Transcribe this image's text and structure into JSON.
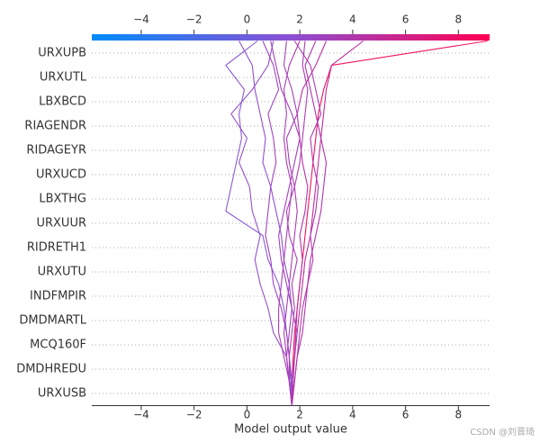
{
  "chart_data": {
    "type": "decision",
    "xlabel": "Model output value",
    "features": [
      "URXUPB",
      "URXUTL",
      "LBXBCD",
      "RIAGENDR",
      "RIDAGEYR",
      "URXUCD",
      "LBXTHG",
      "URXUUR",
      "RIDRETH1",
      "URXUTU",
      "INDFMPIR",
      "DMDMARTL",
      "MCQ160F",
      "DMDHREDU",
      "URXUSB"
    ],
    "xlim": [
      -5.87,
      9.18
    ],
    "xticks": [
      {
        "value": -4,
        "label": "−4"
      },
      {
        "value": -2,
        "label": "−2"
      },
      0,
      2,
      4,
      6,
      8
    ],
    "colormap": [
      "#008bfb",
      "#8c4fd3",
      "#ff0052"
    ],
    "grid": true,
    "series": [
      {
        "color": "#f0115e",
        "values": [
          1.7,
          1.7,
          1.75,
          1.8,
          1.9,
          2.0,
          2.1,
          2.2,
          2.3,
          2.4,
          2.5,
          2.6,
          2.7,
          2.9,
          3.2,
          9.1
        ]
      },
      {
        "color": "#8a5bd6",
        "values": [
          1.7,
          1.65,
          1.6,
          1.5,
          1.4,
          1.2,
          0.8,
          0.6,
          -0.8,
          -0.6,
          -0.4,
          -0.2,
          -0.3,
          -0.1,
          -0.8,
          0.4
        ]
      },
      {
        "color": "#9550cf",
        "values": [
          1.7,
          1.6,
          1.5,
          1.0,
          0.8,
          0.5,
          0.3,
          0.5,
          0.2,
          0.1,
          -0.3,
          0.0,
          -0.6,
          0.2,
          0.8,
          1.0
        ]
      },
      {
        "color": "#c22a9a",
        "values": [
          1.7,
          1.7,
          1.8,
          1.9,
          2.0,
          2.1,
          2.2,
          2.4,
          2.5,
          2.6,
          2.7,
          2.8,
          2.9,
          3.0,
          3.2,
          4.4
        ]
      },
      {
        "color": "#ad3bb3",
        "values": [
          1.7,
          1.6,
          1.5,
          1.4,
          1.5,
          1.6,
          1.7,
          1.8,
          1.9,
          1.8,
          2.0,
          2.1,
          2.2,
          2.3,
          2.1,
          2.2
        ]
      },
      {
        "color": "#a044c0",
        "values": [
          1.7,
          1.6,
          1.6,
          1.5,
          1.3,
          1.0,
          0.9,
          0.7,
          0.8,
          0.9,
          1.1,
          1.0,
          0.8,
          1.2,
          1.0,
          0.6
        ]
      },
      {
        "color": "#ae3ab2",
        "values": [
          1.7,
          1.8,
          1.9,
          2.0,
          2.1,
          2.3,
          2.5,
          2.4,
          2.6,
          2.7,
          2.5,
          2.4,
          2.8,
          2.6,
          2.4,
          1.8
        ]
      },
      {
        "color": "#a73fb8",
        "values": [
          1.7,
          1.7,
          1.6,
          1.7,
          1.8,
          1.7,
          1.9,
          1.6,
          1.5,
          1.8,
          1.6,
          1.5,
          1.9,
          1.7,
          1.4,
          1.5
        ]
      },
      {
        "color": "#9250d0",
        "values": [
          1.7,
          1.7,
          1.8,
          1.9,
          1.7,
          1.6,
          1.4,
          1.3,
          1.1,
          0.9,
          0.6,
          0.7,
          0.5,
          0.3,
          0.2,
          -0.3
        ]
      },
      {
        "color": "#b333ac",
        "values": [
          1.7,
          1.8,
          1.9,
          2.1,
          2.2,
          2.3,
          2.4,
          2.6,
          2.8,
          2.9,
          3.0,
          2.8,
          2.6,
          2.4,
          2.2,
          2.6
        ]
      },
      {
        "color": "#a441bc",
        "values": [
          1.7,
          1.6,
          1.5,
          1.6,
          1.7,
          1.5,
          1.3,
          1.2,
          1.4,
          1.6,
          1.8,
          2.0,
          1.7,
          1.3,
          1.1,
          0.9
        ]
      },
      {
        "color": "#b930a6",
        "values": [
          1.7,
          1.75,
          1.8,
          1.85,
          1.9,
          2.0,
          2.1,
          2.0,
          2.2,
          2.3,
          2.1,
          2.0,
          1.9,
          2.1,
          2.6,
          3.0
        ]
      },
      {
        "color": "#aa3db6",
        "values": [
          1.7,
          1.6,
          1.4,
          1.2,
          1.2,
          1.3,
          1.4,
          1.5,
          1.6,
          1.7,
          1.5,
          1.4,
          1.5,
          1.4,
          1.6,
          2.0
        ]
      }
    ],
    "watermark": "CSDN @刘晋琦"
  }
}
